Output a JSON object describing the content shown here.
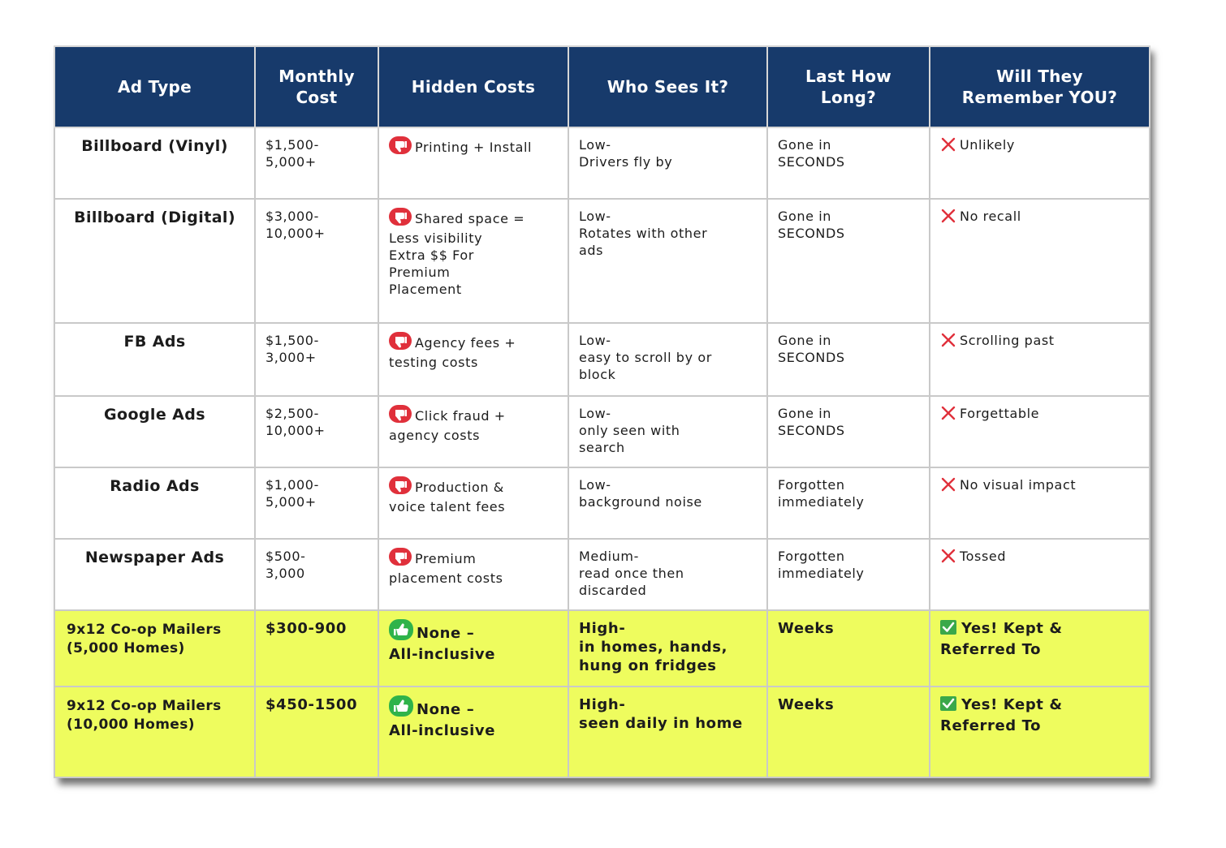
{
  "headers": [
    "Ad Type",
    "Monthly Cost",
    "Hidden Costs",
    "Who Sees It?",
    "Last How Long?",
    "Will They Remember YOU?"
  ],
  "rows": [
    {
      "type": "Billboard (Vinyl)",
      "cost": "$1,500-\n5,000+",
      "hidden": "Printing + Install",
      "hidden_icon": "thumbs-down-icon",
      "who": "Low-\nDrivers fly by",
      "last": "Gone in\nSECONDS",
      "remember": "Unlikely",
      "remember_icon": "x-icon"
    },
    {
      "type": "Billboard (Digital)",
      "cost": "$3,000-\n10,000+",
      "hidden": "Shared space =\nLess visibility\nExtra $$ For\nPremium\nPlacement",
      "hidden_icon": "thumbs-down-icon",
      "who": "Low-\nRotates with other\nads",
      "last": "Gone in\nSECONDS",
      "remember": "No recall",
      "remember_icon": "x-icon"
    },
    {
      "type": "FB Ads",
      "cost": "$1,500-\n3,000+",
      "hidden": "Agency fees +\ntesting costs",
      "hidden_icon": "thumbs-down-icon",
      "who": "Low-\neasy to scroll by or\nblock",
      "last": "Gone in\nSECONDS",
      "remember": "Scrolling past",
      "remember_icon": "x-icon"
    },
    {
      "type": "Google Ads",
      "cost": "$2,500-\n10,000+",
      "hidden": "Click fraud +\nagency costs",
      "hidden_icon": "thumbs-down-icon",
      "who": "Low-\nonly seen with\nsearch",
      "last": "Gone in\nSECONDS",
      "remember": "Forgettable",
      "remember_icon": "x-icon"
    },
    {
      "type": "Radio Ads",
      "cost": "$1,000-\n5,000+",
      "hidden": "Production &\nvoice talent fees",
      "hidden_icon": "thumbs-down-icon",
      "who": "Low-\nbackground noise",
      "last": "Forgotten\nimmediately",
      "remember": "No visual impact",
      "remember_icon": "x-icon"
    },
    {
      "type": "Newspaper Ads",
      "cost": "$500-\n3,000",
      "hidden": "Premium\nplacement costs",
      "hidden_icon": "thumbs-down-icon",
      "who": "Medium-\nread once then\ndiscarded",
      "last": "Forgotten\nimmediately",
      "remember": "Tossed",
      "remember_icon": "x-icon"
    },
    {
      "type": "9x12 Co-op Mailers\n(5,000 Homes)",
      "cost": "$300-900",
      "hidden": "None –\nAll-inclusive",
      "hidden_icon": "thumbs-up-icon",
      "who": "High-\nin homes, hands,\nhung on fridges",
      "last": "Weeks",
      "remember": "Yes! Kept &\nReferred To",
      "remember_icon": "check-icon",
      "highlight": true
    },
    {
      "type": "9x12 Co-op Mailers\n(10,000 Homes)",
      "cost": "$450-1500",
      "hidden": "None –\nAll-inclusive",
      "hidden_icon": "thumbs-up-icon",
      "who": "High-\nseen daily in home",
      "last": "Weeks",
      "remember": "Yes! Kept &\nReferred To",
      "remember_icon": "check-icon",
      "highlight": true
    }
  ],
  "colors": {
    "header_bg": "#173a6b",
    "highlight_bg": "#eefc5e",
    "thumbs_down": "#e0303b",
    "thumbs_up": "#2fb34a",
    "x_mark": "#e0303b",
    "check": "#3aa84a"
  }
}
